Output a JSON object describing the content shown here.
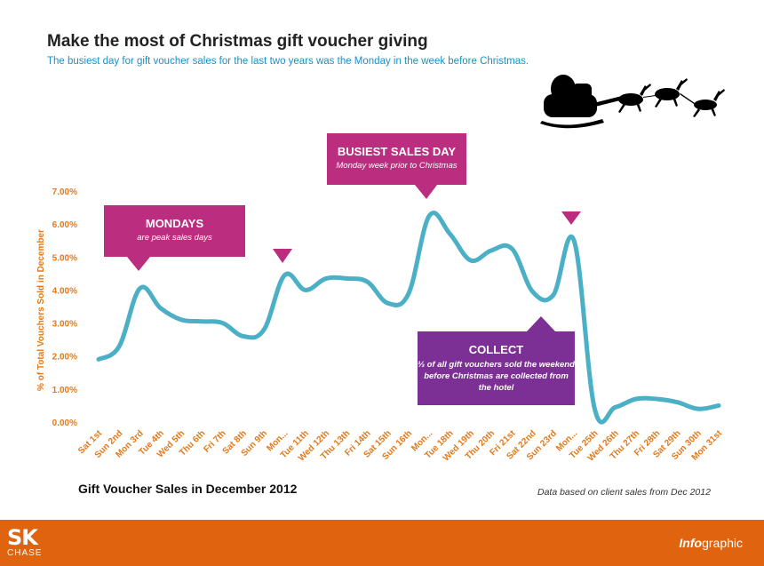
{
  "header": {
    "title": "Make the most of Christmas gift voucher giving",
    "subtitle": "The busiest day for gift voucher sales for the last two years was the Monday in the week before Christmas."
  },
  "callouts": {
    "mondays": {
      "heading": "MONDAYS",
      "text": "are peak sales days"
    },
    "busiest": {
      "heading": "BUSIEST SALES DAY",
      "text": "Monday week prior to Christmas"
    },
    "collect": {
      "heading": "COLLECT",
      "text": "⅓ of all gift vouchers sold the weekend before Christmas are collected from the hotel"
    }
  },
  "footer": {
    "chart_caption": "Gift Voucher Sales in December 2012",
    "data_note": "Data based on client sales  from Dec 2012",
    "logo_mark": "SK",
    "logo_text": "CHASE",
    "infographic_bold": "Info",
    "infographic_rest": "graphic"
  },
  "colors": {
    "line": "#4bafc6",
    "magenta": "#bb2d7e",
    "purple": "#7c2f95",
    "axis_text": "#e07a1c",
    "footer": "#e06310"
  },
  "chart_data": {
    "type": "line",
    "ylabel": "% of Total Vouchers Sold in December",
    "ylim": [
      0,
      7
    ],
    "yticks": [
      "0.00%",
      "1.00%",
      "2.00%",
      "3.00%",
      "4.00%",
      "5.00%",
      "6.00%",
      "7.00%"
    ],
    "grid": false,
    "categories": [
      "Sat 1st",
      "Sun 2nd",
      "Mon 3rd",
      "Tue 4th",
      "Wed 5th",
      "Thu 6th",
      "Fri 7th",
      "Sat 8th",
      "Sun 9th",
      "Mon...",
      "Tue 11th",
      "Wed 12th",
      "Thu 13th",
      "Fri 14th",
      "Sat 15th",
      "Sun 16th",
      "Mon...",
      "Tue 18th",
      "Wed 19th",
      "Thu 20th",
      "Fri 21st",
      "Sat 22nd",
      "Sun 23rd",
      "Mon...",
      "Tue 25th",
      "Wed 26th",
      "Thu 27th",
      "Fri 28th",
      "Sat 29th",
      "Sun 30th",
      "Mon 31st"
    ],
    "series": [
      {
        "values": [
          1.9,
          2.3,
          4.05,
          3.45,
          3.1,
          3.05,
          3.0,
          2.6,
          2.8,
          4.45,
          4.0,
          4.35,
          4.35,
          4.25,
          3.6,
          3.9,
          6.25,
          5.7,
          4.9,
          5.2,
          5.25,
          3.95,
          3.85,
          5.5,
          0.4,
          0.45,
          0.7,
          0.7,
          0.6,
          0.4,
          0.5
        ]
      }
    ]
  }
}
